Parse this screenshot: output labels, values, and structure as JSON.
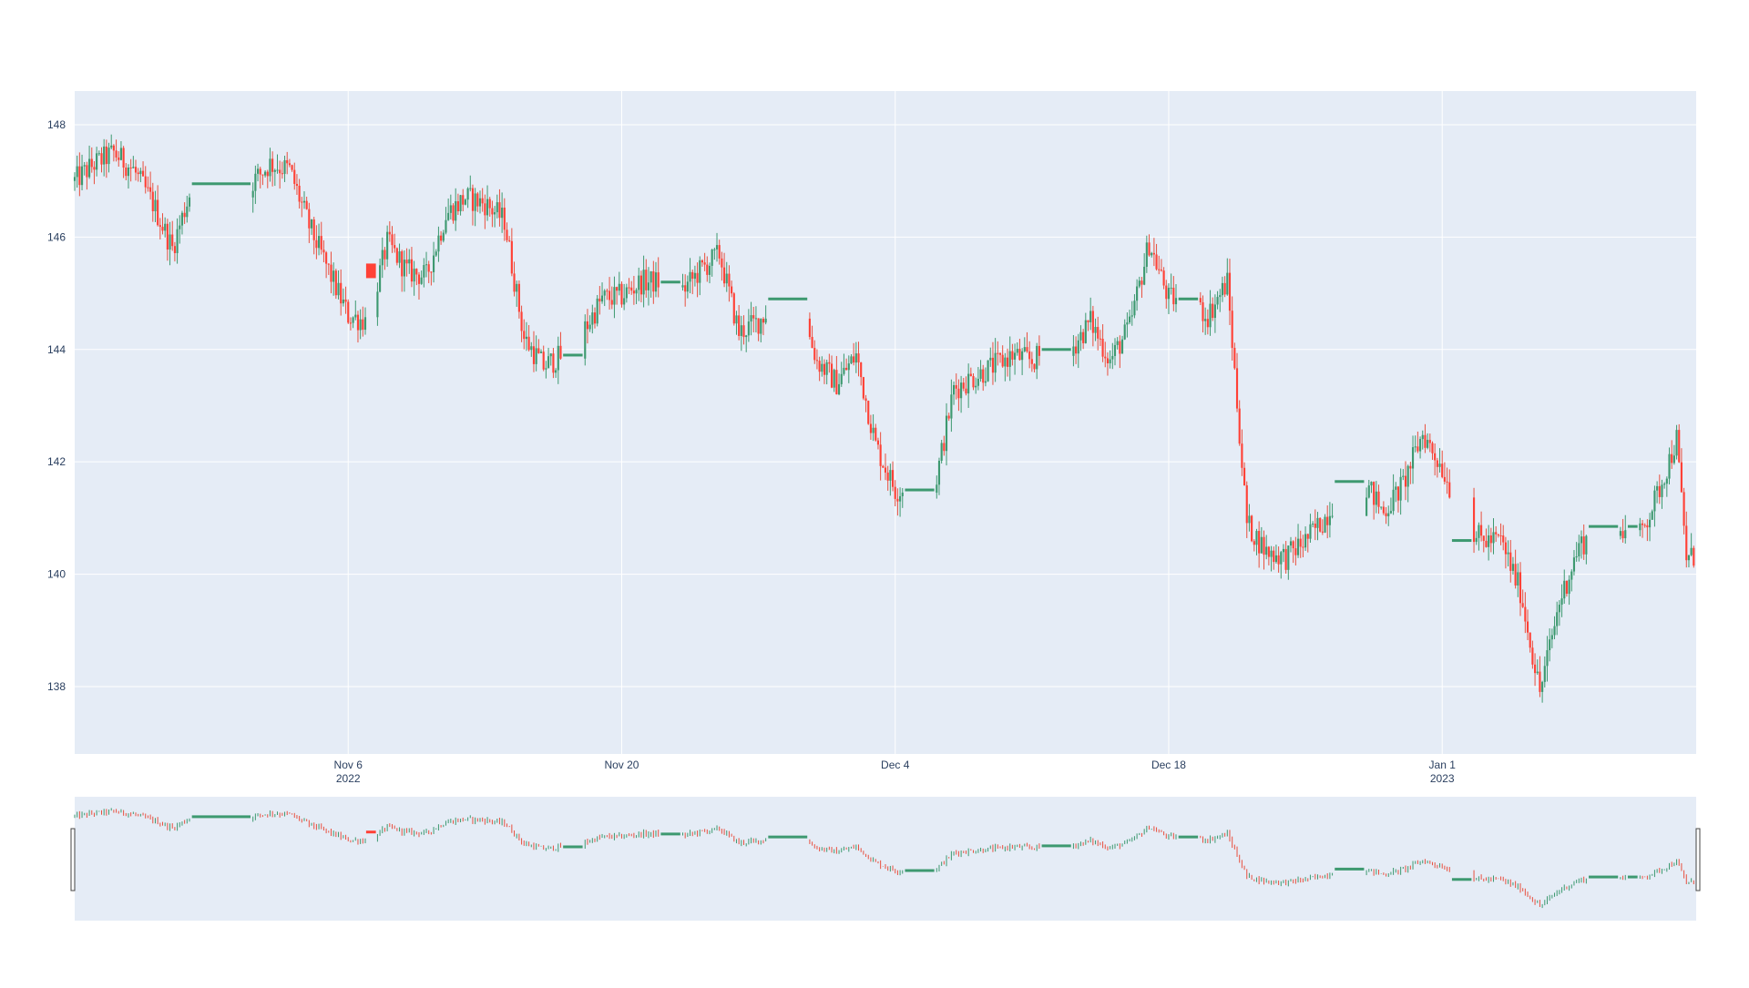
{
  "chart_data": {
    "type": "candlestick",
    "title": "",
    "xlabel": "",
    "ylabel": "",
    "x_range": [
      "2022-10-23",
      "2023-01-13"
    ],
    "ylim": [
      136.8,
      148.6
    ],
    "yticks": [
      138,
      140,
      142,
      144,
      146,
      148
    ],
    "xticks": [
      {
        "date": "2022-11-06",
        "label": "Nov 6",
        "sublabel": "2022"
      },
      {
        "date": "2022-11-20",
        "label": "Nov 20",
        "sublabel": ""
      },
      {
        "date": "2022-12-04",
        "label": "Dec 4",
        "sublabel": ""
      },
      {
        "date": "2022-12-18",
        "label": "Dec 18",
        "sublabel": ""
      },
      {
        "date": "2023-01-01",
        "label": "Jan 1",
        "sublabel": "2023"
      }
    ],
    "grid": true,
    "rangeslider": true,
    "colors": {
      "background": "#e5ecf6",
      "increasing": "#3d9970",
      "decreasing": "#ff4136",
      "wick_decreasing": "#e8503f",
      "text": "#2a3f5f"
    },
    "price_path": [
      [
        "2022-10-23",
        147.0
      ],
      [
        "2022-10-24",
        147.3
      ],
      [
        "2022-10-25",
        147.5
      ],
      [
        "2022-10-26",
        147.2
      ],
      [
        "2022-10-27",
        146.6
      ],
      [
        "2022-10-28",
        145.8
      ],
      [
        "2022-10-29",
        146.9
      ],
      [
        "2022-10-30",
        146.95
      ],
      [
        "2022-10-31",
        146.95
      ],
      [
        "2022-11-01",
        146.95
      ],
      [
        "2022-11-02",
        147.3
      ],
      [
        "2022-11-03",
        147.2
      ],
      [
        "2022-11-04",
        146.2
      ],
      [
        "2022-11-05",
        145.4
      ],
      [
        "2022-11-06",
        144.6
      ],
      [
        "2022-11-07",
        144.5
      ],
      [
        "2022-11-08",
        145.9
      ],
      [
        "2022-11-09",
        145.4
      ],
      [
        "2022-11-10",
        145.3
      ],
      [
        "2022-11-11",
        146.4
      ],
      [
        "2022-11-12",
        146.7
      ],
      [
        "2022-11-13",
        146.6
      ],
      [
        "2022-11-14",
        146.3
      ],
      [
        "2022-11-15",
        144.2
      ],
      [
        "2022-11-16",
        143.7
      ],
      [
        "2022-11-17",
        143.9
      ],
      [
        "2022-11-18",
        144.3
      ],
      [
        "2022-11-19",
        144.9
      ],
      [
        "2022-11-20",
        144.95
      ],
      [
        "2022-11-21",
        145.2
      ],
      [
        "2022-11-22",
        145.2
      ],
      [
        "2022-11-23",
        145.0
      ],
      [
        "2022-11-24",
        145.4
      ],
      [
        "2022-11-25",
        145.7
      ],
      [
        "2022-11-26",
        144.3
      ],
      [
        "2022-11-27",
        144.5
      ],
      [
        "2022-11-28",
        144.9
      ],
      [
        "2022-11-29",
        144.9
      ],
      [
        "2022-11-30",
        143.8
      ],
      [
        "2022-12-01",
        143.4
      ],
      [
        "2022-12-02",
        143.9
      ],
      [
        "2022-12-03",
        142.3
      ],
      [
        "2022-12-04",
        141.5
      ],
      [
        "2022-12-05",
        141.5
      ],
      [
        "2022-12-06",
        141.5
      ],
      [
        "2022-12-07",
        143.3
      ],
      [
        "2022-12-08",
        143.5
      ],
      [
        "2022-12-09",
        143.7
      ],
      [
        "2022-12-10",
        143.9
      ],
      [
        "2022-12-11",
        143.8
      ],
      [
        "2022-12-12",
        144.0
      ],
      [
        "2022-12-13",
        144.0
      ],
      [
        "2022-12-14",
        144.5
      ],
      [
        "2022-12-15",
        143.8
      ],
      [
        "2022-12-16",
        144.4
      ],
      [
        "2022-12-17",
        145.9
      ],
      [
        "2022-12-18",
        144.9
      ],
      [
        "2022-12-19",
        144.9
      ],
      [
        "2022-12-20",
        144.6
      ],
      [
        "2022-12-21",
        145.2
      ],
      [
        "2022-12-22",
        140.9
      ],
      [
        "2022-12-23",
        140.4
      ],
      [
        "2022-12-24",
        140.3
      ],
      [
        "2022-12-25",
        140.6
      ],
      [
        "2022-12-26",
        141.0
      ],
      [
        "2022-12-27",
        141.65
      ],
      [
        "2022-12-28",
        141.65
      ],
      [
        "2022-12-29",
        141.1
      ],
      [
        "2022-12-30",
        141.6
      ],
      [
        "2022-12-31",
        142.5
      ],
      [
        "2023-01-01",
        141.9
      ],
      [
        "2023-01-02",
        141.0
      ],
      [
        "2023-01-03",
        140.6
      ],
      [
        "2023-01-04",
        140.6
      ],
      [
        "2023-01-05",
        139.7
      ],
      [
        "2023-01-06",
        137.9
      ],
      [
        "2023-01-07",
        139.5
      ],
      [
        "2023-01-08",
        140.5
      ],
      [
        "2023-01-09",
        140.8
      ],
      [
        "2023-01-10",
        140.85
      ],
      [
        "2023-01-11",
        140.6
      ],
      [
        "2023-01-12",
        141.4
      ],
      [
        "2023-01-13",
        142.4
      ],
      [
        "2023-01-13T12:00",
        140.3
      ]
    ],
    "flat_segments": [
      {
        "start": "2022-10-29T00:00",
        "end": "2022-11-01T00:00",
        "price": 146.95,
        "direction": "increasing"
      },
      {
        "start": "2022-11-06T22:00",
        "end": "2022-11-07T10:00",
        "price": 145.4,
        "direction": "decreasing"
      },
      {
        "start": "2022-11-17T00:00",
        "end": "2022-11-18T00:00",
        "price": 143.9,
        "direction": "increasing"
      },
      {
        "start": "2022-11-22T00:00",
        "end": "2022-11-23T00:00",
        "price": 145.2,
        "direction": "increasing"
      },
      {
        "start": "2022-11-27T12:00",
        "end": "2022-11-29T12:00",
        "price": 144.9,
        "direction": "increasing"
      },
      {
        "start": "2022-12-04T12:00",
        "end": "2022-12-06T00:00",
        "price": 141.5,
        "direction": "increasing"
      },
      {
        "start": "2022-12-11T12:00",
        "end": "2022-12-13T00:00",
        "price": 144.0,
        "direction": "increasing"
      },
      {
        "start": "2022-12-18T12:00",
        "end": "2022-12-19T12:00",
        "price": 144.9,
        "direction": "increasing"
      },
      {
        "start": "2022-12-26T12:00",
        "end": "2022-12-28T00:00",
        "price": 141.65,
        "direction": "increasing"
      },
      {
        "start": "2023-01-01T12:00",
        "end": "2023-01-02T12:00",
        "price": 140.6,
        "direction": "increasing"
      },
      {
        "start": "2023-01-08T12:00",
        "end": "2023-01-10T00:00",
        "price": 140.85,
        "direction": "increasing"
      },
      {
        "start": "2023-01-10T12:00",
        "end": "2023-01-11T00:00",
        "price": 140.85,
        "direction": "increasing"
      }
    ]
  }
}
